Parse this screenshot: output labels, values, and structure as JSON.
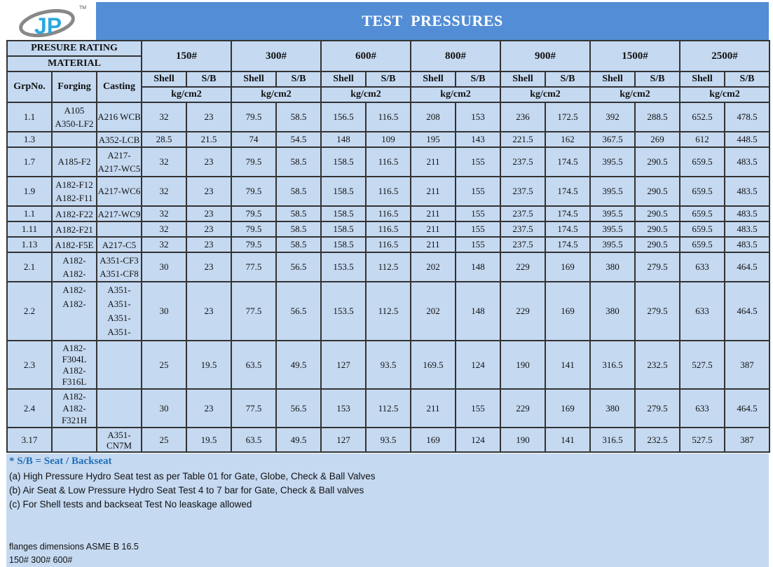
{
  "logo": {
    "text": "JP",
    "tm": "TM"
  },
  "title": "TEST  PRESSURES",
  "colors": {
    "title_bar": "#538dd5",
    "cell_bg": "#c5d9f1",
    "note_blue": "#1f6fb8"
  },
  "header": {
    "pressure_rating": "PRESURE RATING",
    "material": "MATERIAL",
    "grp": "GrpNo.",
    "forging": "Forging",
    "casting": "Casting",
    "shell": "Shell",
    "sb": "S/B",
    "unit": "kg/cm2",
    "classes": [
      "150#",
      "300#",
      "600#",
      "800#",
      "900#",
      "1500#",
      "2500#"
    ]
  },
  "rows": [
    {
      "grp": "1.1",
      "forging": [
        "A105",
        "A350-LF2"
      ],
      "casting": [
        "A216 WCB"
      ],
      "values": [
        "32",
        "23",
        "79.5",
        "58.5",
        "156.5",
        "116.5",
        "208",
        "153",
        "236",
        "172.5",
        "392",
        "288.5",
        "652.5",
        "478.5"
      ]
    },
    {
      "grp": "1.3",
      "forging": [],
      "casting": [
        "A352-LCB"
      ],
      "values": [
        "28.5",
        "21.5",
        "74",
        "54.5",
        "148",
        "109",
        "195",
        "143",
        "221.5",
        "162",
        "367.5",
        "269",
        "612",
        "448.5"
      ]
    },
    {
      "grp": "1.7",
      "forging": [
        "A185-F2"
      ],
      "casting": [
        "A217-",
        "A217-WC5"
      ],
      "values": [
        "32",
        "23",
        "79.5",
        "58.5",
        "158.5",
        "116.5",
        "211",
        "155",
        "237.5",
        "174.5",
        "395.5",
        "290.5",
        "659.5",
        "483.5"
      ]
    },
    {
      "grp": "1.9",
      "forging": [
        "A182-F12",
        "A182-F11"
      ],
      "casting": [
        "A217-WC6"
      ],
      "values": [
        "32",
        "23",
        "79.5",
        "58.5",
        "158.5",
        "116.5",
        "211",
        "155",
        "237.5",
        "174.5",
        "395.5",
        "290.5",
        "659.5",
        "483.5"
      ]
    },
    {
      "grp": "1.1",
      "forging": [
        "A182-F22"
      ],
      "casting": [
        "A217-WC9"
      ],
      "values": [
        "32",
        "23",
        "79.5",
        "58.5",
        "158.5",
        "116.5",
        "211",
        "155",
        "237.5",
        "174.5",
        "395.5",
        "290.5",
        "659.5",
        "483.5"
      ]
    },
    {
      "grp": "1.11",
      "forging": [
        "A182-F21"
      ],
      "casting": [],
      "values": [
        "32",
        "23",
        "79.5",
        "58.5",
        "158.5",
        "116.5",
        "211",
        "155",
        "237.5",
        "174.5",
        "395.5",
        "290.5",
        "659.5",
        "483.5"
      ]
    },
    {
      "grp": "1.13",
      "forging": [
        "A182-F5E"
      ],
      "casting": [
        "A217-C5"
      ],
      "values": [
        "32",
        "23",
        "79.5",
        "58.5",
        "158.5",
        "116.5",
        "211",
        "155",
        "237.5",
        "174.5",
        "395.5",
        "290.5",
        "659.5",
        "483.5"
      ]
    },
    {
      "grp": "2.1",
      "forging": [
        "A182-",
        "A182-"
      ],
      "casting": [
        "A351-CF3",
        "A351-CF8"
      ],
      "values": [
        "30",
        "23",
        "77.5",
        "56.5",
        "153.5",
        "112.5",
        "202",
        "148",
        "229",
        "169",
        "380",
        "279.5",
        "633",
        "464.5"
      ]
    },
    {
      "grp": "2.2",
      "forging": [
        "A182-",
        "A182-",
        "",
        ""
      ],
      "casting": [
        "A351-",
        "A351-",
        "A351-",
        "A351-"
      ],
      "values": [
        "30",
        "23",
        "77.5",
        "56.5",
        "153.5",
        "112.5",
        "202",
        "148",
        "229",
        "169",
        "380",
        "279.5",
        "633",
        "464.5"
      ]
    },
    {
      "grp": "2.3",
      "forging": [
        "A182-",
        "F304L",
        "A182-",
        "F316L"
      ],
      "casting": [],
      "values": [
        "25",
        "19.5",
        "63.5",
        "49.5",
        "127",
        "93.5",
        "169.5",
        "124",
        "190",
        "141",
        "316.5",
        "232.5",
        "527.5",
        "387"
      ]
    },
    {
      "grp": "2.4",
      "forging": [
        "A182-",
        "A182-",
        "F321H"
      ],
      "casting": [],
      "values": [
        "30",
        "23",
        "77.5",
        "56.5",
        "153",
        "112.5",
        "211",
        "155",
        "229",
        "169",
        "380",
        "279.5",
        "633",
        "464.5"
      ]
    },
    {
      "grp": "3.17",
      "forging": [],
      "casting": [
        "A351-",
        "CN7M"
      ],
      "values": [
        "25",
        "19.5",
        "63.5",
        "49.5",
        "127",
        "93.5",
        "169",
        "124",
        "190",
        "141",
        "316.5",
        "232.5",
        "527.5",
        "387"
      ]
    }
  ],
  "notes": {
    "sb_note": "* S/B = Seat / Backseat",
    "a": "(a) High Pressure Hydro Seat test as per Table 01 for Gate, Globe, Check & Ball Valves",
    "b": "(b) Air Seat & Low Pressure Hydro Seat Test 4 to 7 bar for Gate, Check & Ball valves",
    "c": "(c) For Shell tests and backseat Test No leaskage allowed",
    "flanges": "flanges dimensions ASME B 16.5",
    "classes": "150# 300# 600#"
  }
}
